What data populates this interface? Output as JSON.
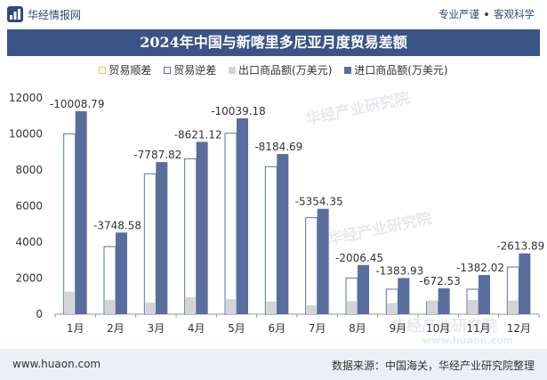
{
  "header": {
    "brand": "华经情报网",
    "tags": [
      "专业严谨",
      "客观科学"
    ]
  },
  "title": "2024年中国与新喀里多尼亚月度贸易差额",
  "legend": [
    {
      "name": "贸易顺差",
      "color": "#f5c342",
      "style": "outline"
    },
    {
      "name": "贸易逆差",
      "color": "#4a6fa8",
      "style": "outline"
    },
    {
      "name": "出口商品额(万美元)",
      "color": "#d4d4d4",
      "style": "fill"
    },
    {
      "name": "进口商品额(万美元)",
      "color": "#5a6e9e",
      "style": "fill"
    }
  ],
  "watermarks": [
    "华经产业研究院",
    "www.huaon.com"
  ],
  "footer": {
    "site": "www.huaon.com",
    "source": "数据来源：中国海关，华经产业研究院整理"
  },
  "chart_data": {
    "type": "bar",
    "categories": [
      "1月",
      "2月",
      "3月",
      "4月",
      "5月",
      "6月",
      "7月",
      "8月",
      "9月",
      "10月",
      "11月",
      "12月"
    ],
    "series": [
      {
        "name": "贸易逆差",
        "values": [
          -10008.79,
          -3748.58,
          -7787.82,
          -8621.12,
          -10039.18,
          -8184.69,
          -5354.35,
          -2006.45,
          -1383.93,
          -672.53,
          -1382.02,
          -2613.89
        ]
      },
      {
        "name": "出口商品额(万美元)",
        "values": [
          1250,
          780,
          650,
          940,
          830,
          700,
          490,
          720,
          620,
          760,
          790,
          760
        ]
      },
      {
        "name": "进口商品额(万美元)",
        "values": [
          11258.79,
          4528.58,
          8437.82,
          9561.12,
          10869.18,
          8884.69,
          5844.35,
          2726.45,
          2003.93,
          1432.53,
          2172.02,
          3373.89
        ]
      }
    ],
    "data_labels": [
      "-10008.79",
      "-3748.58",
      "-7787.82",
      "-8621.12",
      "-10039.18",
      "-8184.69",
      "-5354.35",
      "-2006.45",
      "-1383.93",
      "-672.53",
      "-1382.02",
      "-2613.89"
    ],
    "y_ticks": [
      "0",
      "2000",
      "4000",
      "6000",
      "8000",
      "10000",
      "12000"
    ],
    "ylim": [
      0,
      12000
    ],
    "legend_position": "top",
    "grid": false
  }
}
